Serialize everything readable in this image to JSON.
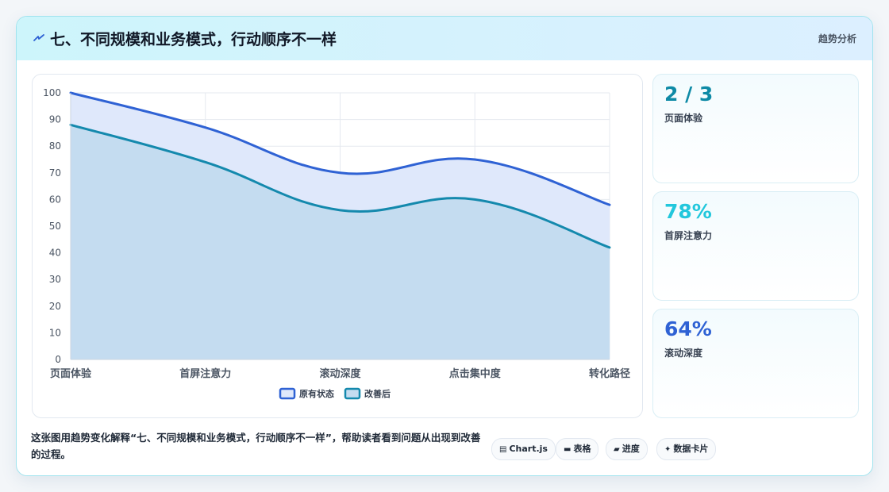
{
  "header": {
    "icon": "lightning-icon",
    "title": "七、不同规模和业务模式，行动顺序不一样",
    "tag": "趋势分析"
  },
  "chart_data": {
    "type": "area",
    "categories": [
      "页面体验",
      "首屏注意力",
      "滚动深度",
      "点击集中度",
      "转化路径"
    ],
    "series": [
      {
        "name": "原有状态",
        "values": [
          100,
          87,
          70,
          75,
          58
        ],
        "color": "#2f62d4",
        "fill": "#dfe8fb"
      },
      {
        "name": "改善后",
        "values": [
          88,
          74,
          56,
          60,
          42
        ],
        "color": "#1489ad",
        "fill": "#c4dcf0"
      }
    ],
    "ylim": [
      0,
      100
    ],
    "yticks": [
      0,
      10,
      20,
      30,
      40,
      50,
      60,
      70,
      80,
      90,
      100
    ],
    "grid": true,
    "legend": "bottom"
  },
  "stats": [
    {
      "value": "2 / 3",
      "label": "页面体验",
      "color": "#0e8aa6"
    },
    {
      "value": "78%",
      "label": "首屏注意力",
      "color": "#22c7dc"
    },
    {
      "value": "64%",
      "label": "滚动深度",
      "color": "#2f62d4"
    }
  ],
  "footer": {
    "description": "这张图用趋势变化解释“七、不同规模和业务模式，行动顺序不一样”，帮助读者看到问题从出现到改善的过程。",
    "chips": [
      {
        "icon": "chart-icon",
        "glyph": "▤",
        "label": "Chart.js"
      },
      {
        "icon": "table-icon",
        "glyph": "▬",
        "label": "表格"
      },
      {
        "icon": "progress-icon",
        "glyph": "▰",
        "label": "进度"
      },
      {
        "icon": "sparkle-icon",
        "glyph": "✦",
        "label": "数据卡片"
      }
    ]
  }
}
